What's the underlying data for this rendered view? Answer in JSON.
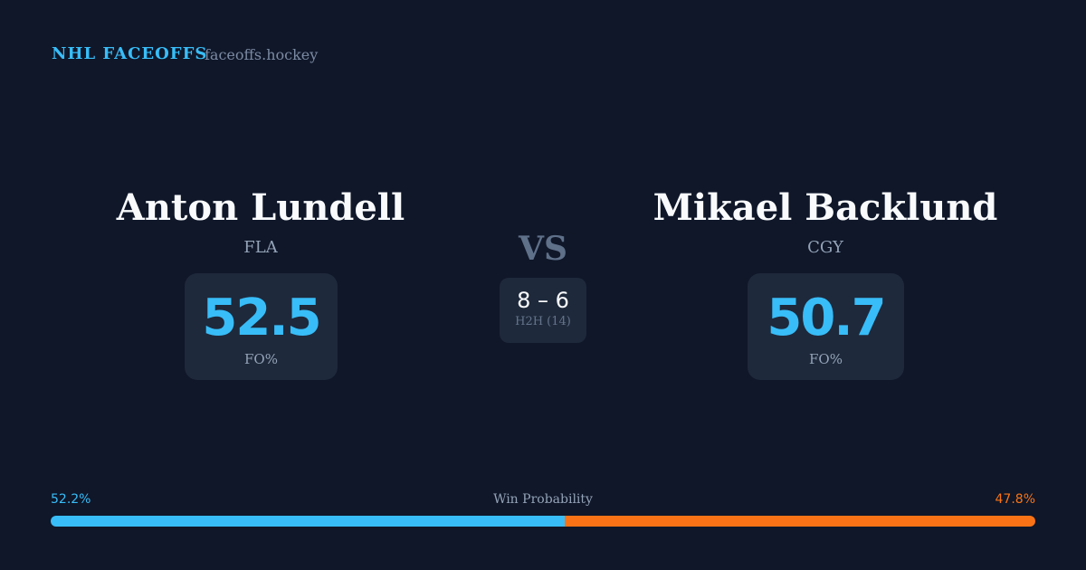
{
  "header": {
    "brand": "NHL FACEOFFS",
    "domain": "faceoffs.hockey"
  },
  "left_player": {
    "name": "Anton Lundell",
    "team": "FLA",
    "fo_pct": "52.5",
    "fo_label": "FO%"
  },
  "right_player": {
    "name": "Mikael Backlund",
    "team": "CGY",
    "fo_pct": "50.7",
    "fo_label": "FO%"
  },
  "matchup": {
    "vs": "VS",
    "h2h_score": "8 – 6",
    "h2h_label": "H2H (14)"
  },
  "win_probability": {
    "label": "Win Probability",
    "left_pct": "52.2%",
    "right_pct": "47.8%",
    "left_value": 52.2,
    "right_value": 47.8
  },
  "colors": {
    "left": "#38bdf8",
    "right": "#f97316",
    "background": "#0f1729",
    "card": "#1e293b"
  }
}
